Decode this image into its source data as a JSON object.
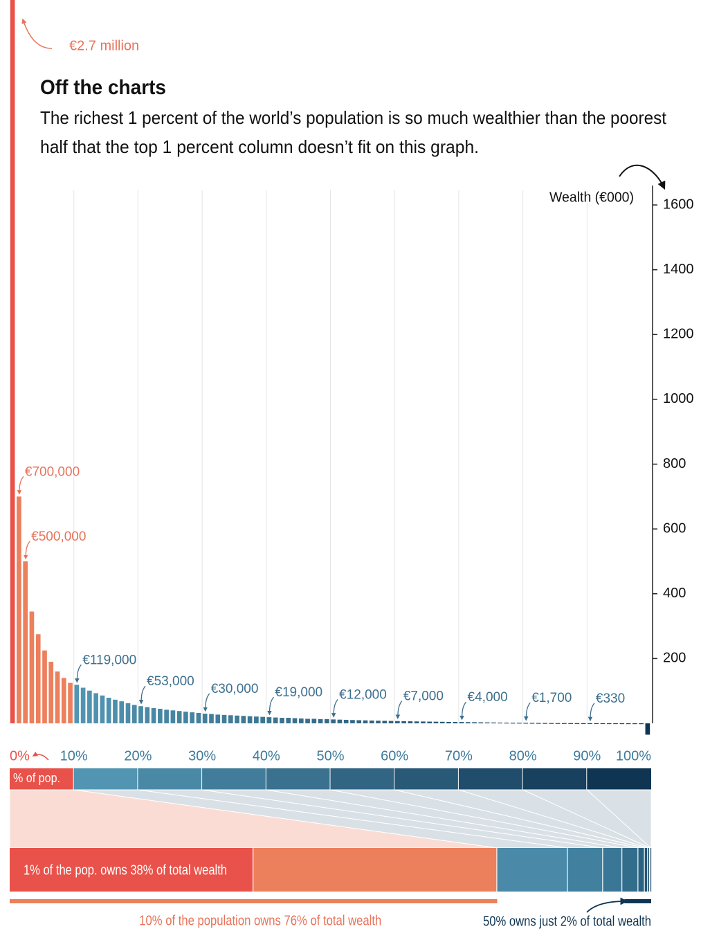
{
  "chart_data": [
    {
      "type": "bar",
      "title": "Off the charts",
      "subtitle": [
        "The richest 1 percent of the world’s population is so much wealthier than the poorest",
        "half that the top 1 percent column doesn’t fit on this graph."
      ],
      "y_label": "Wealth (€000)",
      "x_label": "% of pop.",
      "values": [
        2700,
        700,
        500,
        345,
        275,
        225,
        190,
        160,
        140,
        125,
        119,
        110,
        101,
        93,
        86,
        79,
        73,
        68,
        62,
        57,
        53,
        50,
        47,
        45,
        42,
        40,
        38,
        36,
        34,
        32,
        30,
        29,
        27,
        26,
        25,
        24,
        23,
        22,
        21,
        20,
        19,
        18,
        17,
        17,
        16,
        15,
        14,
        14,
        13,
        13,
        12,
        11.4,
        10.8,
        10.2,
        9.7,
        9.2,
        8.7,
        8.2,
        7.8,
        7.4,
        7,
        6.6,
        6.3,
        5.9,
        5.6,
        5.3,
        5,
        4.7,
        4.5,
        4.2,
        4,
        3.7,
        3.4,
        3.1,
        2.8,
        2.6,
        2.4,
        2.2,
        2,
        1.9,
        1.7,
        1.44,
        1.22,
        1.04,
        0.88,
        0.75,
        0.64,
        0.54,
        0.46,
        0.39,
        0.33,
        0.28,
        0.23,
        0.19,
        0.16,
        0.13,
        0.1,
        0.07,
        0.04,
        -35
      ],
      "value_labels": [
        "€2.7 million",
        "€700,000",
        "€500,000",
        null,
        null,
        null,
        null,
        null,
        null,
        null,
        "€119,000",
        null,
        null,
        null,
        null,
        null,
        null,
        null,
        null,
        null,
        "€53,000",
        null,
        null,
        null,
        null,
        null,
        null,
        null,
        null,
        null,
        "€30,000",
        null,
        null,
        null,
        null,
        null,
        null,
        null,
        null,
        null,
        "€19,000",
        null,
        null,
        null,
        null,
        null,
        null,
        null,
        null,
        null,
        "€12,000",
        null,
        null,
        null,
        null,
        null,
        null,
        null,
        null,
        null,
        "€7,000",
        null,
        null,
        null,
        null,
        null,
        null,
        null,
        null,
        null,
        "€4,000",
        null,
        null,
        null,
        null,
        null,
        null,
        null,
        null,
        null,
        "€1,700",
        null,
        null,
        null,
        null,
        null,
        null,
        null,
        null,
        null,
        "€330",
        null,
        null,
        null,
        null,
        null,
        null,
        null,
        null,
        null
      ],
      "palette": [
        "#e8524a",
        "#ec7f5c",
        "#5295b2",
        "#0f3553"
      ],
      "xlim": [
        0,
        100
      ],
      "xticks": [
        {
          "value": 0,
          "label": "0%"
        },
        {
          "value": 10,
          "label": "10%"
        },
        {
          "value": 20,
          "label": "20%"
        },
        {
          "value": 30,
          "label": "30%"
        },
        {
          "value": 40,
          "label": "40%"
        },
        {
          "value": 50,
          "label": "50%"
        },
        {
          "value": 60,
          "label": "60%"
        },
        {
          "value": 70,
          "label": "70%"
        },
        {
          "value": 80,
          "label": "80%"
        },
        {
          "value": 90,
          "label": "90%"
        },
        {
          "value": 100,
          "label": "100%"
        }
      ],
      "ylim": [
        -50,
        1660
      ],
      "yticks": [
        200,
        400,
        600,
        800,
        1000,
        1200,
        1400,
        1600
      ],
      "grid": true
    },
    {
      "type": "share",
      "values": [
        38,
        38,
        11,
        5.5,
        3,
        2.5,
        1,
        0.5,
        0.3,
        0.15,
        0.05
      ],
      "colors": [
        "#e8524a",
        "#ec7f5c",
        "#4a89a8",
        "#41809f",
        "#3a7796",
        "#336d8c",
        "#2b6282",
        "#245878",
        "#1d4d6e",
        "#164264",
        "#0f3553"
      ],
      "xlim": [
        0,
        100
      ],
      "annotations": [
        "1% of the pop. owns 38% of total wealth",
        "10% of the population owns 76% of total wealth",
        "50% owns just 2% of total wealth"
      ]
    }
  ]
}
